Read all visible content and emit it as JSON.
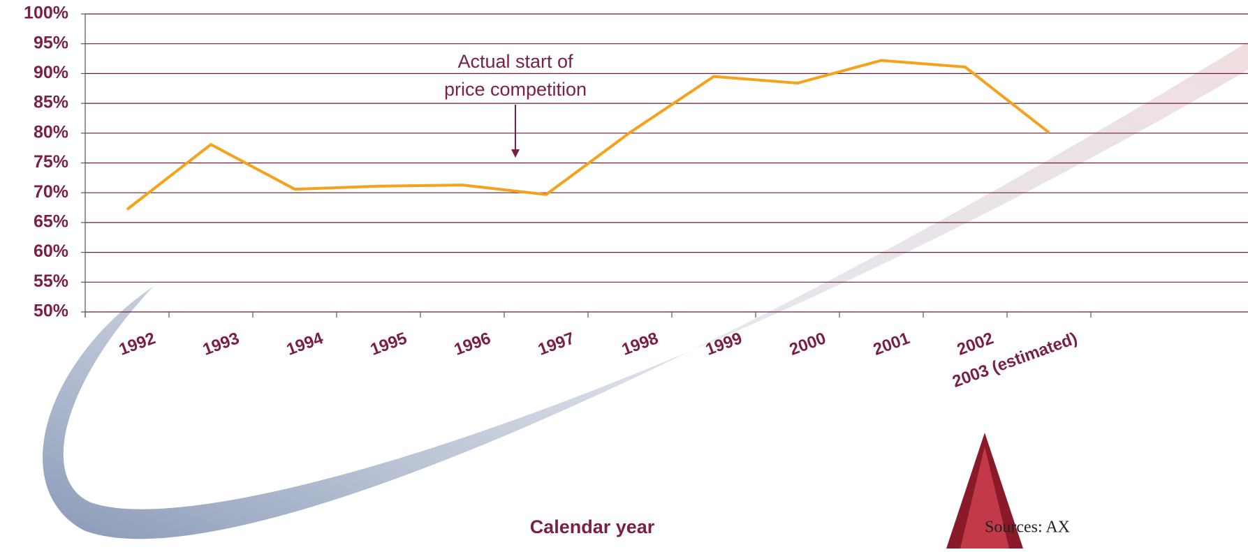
{
  "chart_data": {
    "type": "line",
    "x_label": "Calendar year",
    "annotation": [
      "Actual start of",
      "price competition"
    ],
    "source": "Sources: AX",
    "categories": [
      "1992",
      "1993",
      "1994",
      "1995",
      "1996",
      "1997",
      "1998",
      "1999",
      "2000",
      "2001",
      "2002",
      "2003 (estimated)"
    ],
    "series": [
      {
        "color": "#f5a11a",
        "values": [
          67.2,
          78.1,
          70.6,
          71.1,
          71.3,
          69.7,
          80.1,
          89.5,
          88.4,
          92.2,
          91.1,
          80.1
        ]
      }
    ],
    "ylim": [
      50,
      100
    ],
    "yticks": [
      {
        "value": 50,
        "label": "50%"
      },
      {
        "value": 55,
        "label": "55%"
      },
      {
        "value": 60,
        "label": "60%"
      },
      {
        "value": 65,
        "label": "65%"
      },
      {
        "value": 70,
        "label": "70%"
      },
      {
        "value": 75,
        "label": "75%"
      },
      {
        "value": 80,
        "label": "80%"
      },
      {
        "value": 85,
        "label": "85%"
      },
      {
        "value": 90,
        "label": "90%"
      },
      {
        "value": 95,
        "label": "95%"
      },
      {
        "value": 100,
        "label": "100%"
      }
    ],
    "grid": true
  }
}
